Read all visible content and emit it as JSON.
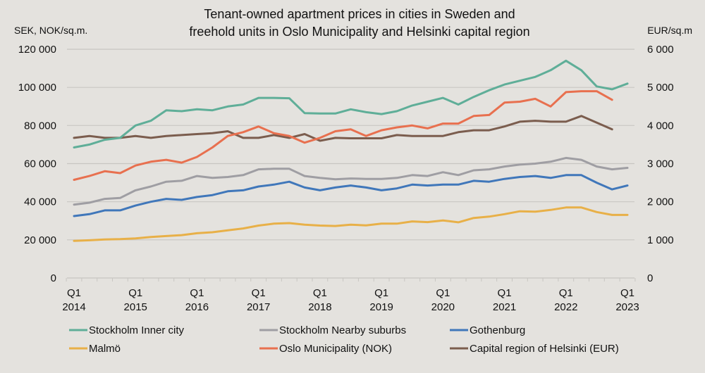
{
  "chart_data": {
    "type": "line",
    "title": "Tenant-owned apartment prices in cities in Sweden and freehold units in Oslo Municipality and Helsinki capital region",
    "title_lines": [
      "Tenant-owned apartment prices in cities in Sweden and",
      "freehold units in Oslo Municipality and Helsinki capital region"
    ],
    "ylabel_left": "SEK, NOK/sq.m.",
    "ylabel_right": "EUR/sq.m",
    "ylim_left": [
      0,
      120000
    ],
    "ylim_right": [
      0,
      6000
    ],
    "yticks_left": [
      "0",
      "20 000",
      "40 000",
      "60 000",
      "80 000",
      "100 000",
      "120 000"
    ],
    "yticks_right": [
      "0",
      "1 000",
      "2 000",
      "3 000",
      "4 000",
      "5 000",
      "6 000"
    ],
    "grid": true,
    "legend_position": "bottom",
    "x_start": "Q1 2014",
    "x_end": "Q1 2023",
    "x_quarters_count": 37,
    "xtick_labels": [
      [
        "Q1",
        "2014"
      ],
      [
        "Q1",
        "2015"
      ],
      [
        "Q1",
        "2016"
      ],
      [
        "Q1",
        "2017"
      ],
      [
        "Q1",
        "2018"
      ],
      [
        "Q1",
        "2019"
      ],
      [
        "Q1",
        "2020"
      ],
      [
        "Q1",
        "2021"
      ],
      [
        "Q1",
        "2022"
      ],
      [
        "Q1",
        "2023"
      ]
    ],
    "series": [
      {
        "name": "Stockholm Inner city",
        "color": "#5fae98",
        "axis": "left",
        "values": [
          68500,
          70000,
          72500,
          73500,
          80000,
          82500,
          88000,
          87500,
          88500,
          88000,
          90000,
          91000,
          94500,
          94500,
          94300,
          86500,
          86300,
          86300,
          88500,
          87000,
          86000,
          87500,
          90500,
          92500,
          94500,
          91000,
          95000,
          98500,
          101500,
          103500,
          105500,
          109000,
          114000,
          109000,
          100500,
          99000,
          102000
        ]
      },
      {
        "name": "Stockholm Nearby suburbs",
        "color": "#9f9ea3",
        "axis": "left",
        "values": [
          38500,
          39500,
          41500,
          42000,
          46000,
          48000,
          50500,
          51000,
          53500,
          52500,
          53000,
          54000,
          57000,
          57300,
          57300,
          53500,
          52500,
          51800,
          52200,
          52000,
          52000,
          52500,
          54000,
          53500,
          55500,
          54000,
          56500,
          57000,
          58500,
          59500,
          60000,
          61000,
          63000,
          62000,
          58500,
          57000,
          57800
        ]
      },
      {
        "name": "Gothenburg",
        "color": "#4077ba",
        "axis": "left",
        "values": [
          32500,
          33500,
          35500,
          35500,
          38000,
          40000,
          41500,
          41000,
          42500,
          43500,
          45500,
          46000,
          48000,
          49000,
          50500,
          47500,
          46000,
          47500,
          48500,
          47500,
          46000,
          47000,
          49000,
          48500,
          49000,
          49000,
          51000,
          50500,
          52000,
          53000,
          53500,
          52500,
          54000,
          54000,
          50000,
          46500,
          48500
        ]
      },
      {
        "name": "Malmö",
        "color": "#e8b048",
        "axis": "left",
        "values": [
          19500,
          19800,
          20200,
          20400,
          20800,
          21500,
          22000,
          22500,
          23500,
          24000,
          25000,
          26000,
          27500,
          28500,
          28800,
          28000,
          27500,
          27300,
          28000,
          27600,
          28500,
          28500,
          29700,
          29300,
          30200,
          29200,
          31500,
          32200,
          33500,
          35000,
          34800,
          35700,
          37000,
          37000,
          34600,
          33100,
          33100
        ]
      },
      {
        "name": "Oslo Municipality (NOK)",
        "color": "#e8704f",
        "axis": "left",
        "values": [
          51500,
          53500,
          56000,
          55000,
          59000,
          61000,
          62000,
          60500,
          63500,
          68500,
          74500,
          76500,
          79500,
          76000,
          74500,
          71000,
          73500,
          77000,
          78000,
          74500,
          77500,
          79000,
          80000,
          78500,
          81000,
          81000,
          85000,
          85500,
          92000,
          92500,
          94000,
          90000,
          97500,
          98000,
          98000,
          93500
        ]
      },
      {
        "name": "Capital region of Helsinki (EUR)",
        "color": "#7b5d4e",
        "axis": "right",
        "values": [
          3675,
          3725,
          3675,
          3675,
          3725,
          3675,
          3725,
          3750,
          3775,
          3800,
          3850,
          3675,
          3675,
          3750,
          3675,
          3775,
          3600,
          3675,
          3665,
          3665,
          3665,
          3750,
          3725,
          3725,
          3725,
          3825,
          3875,
          3875,
          3975,
          4100,
          4125,
          4100,
          4100,
          4250,
          4075,
          3900
        ]
      }
    ]
  }
}
